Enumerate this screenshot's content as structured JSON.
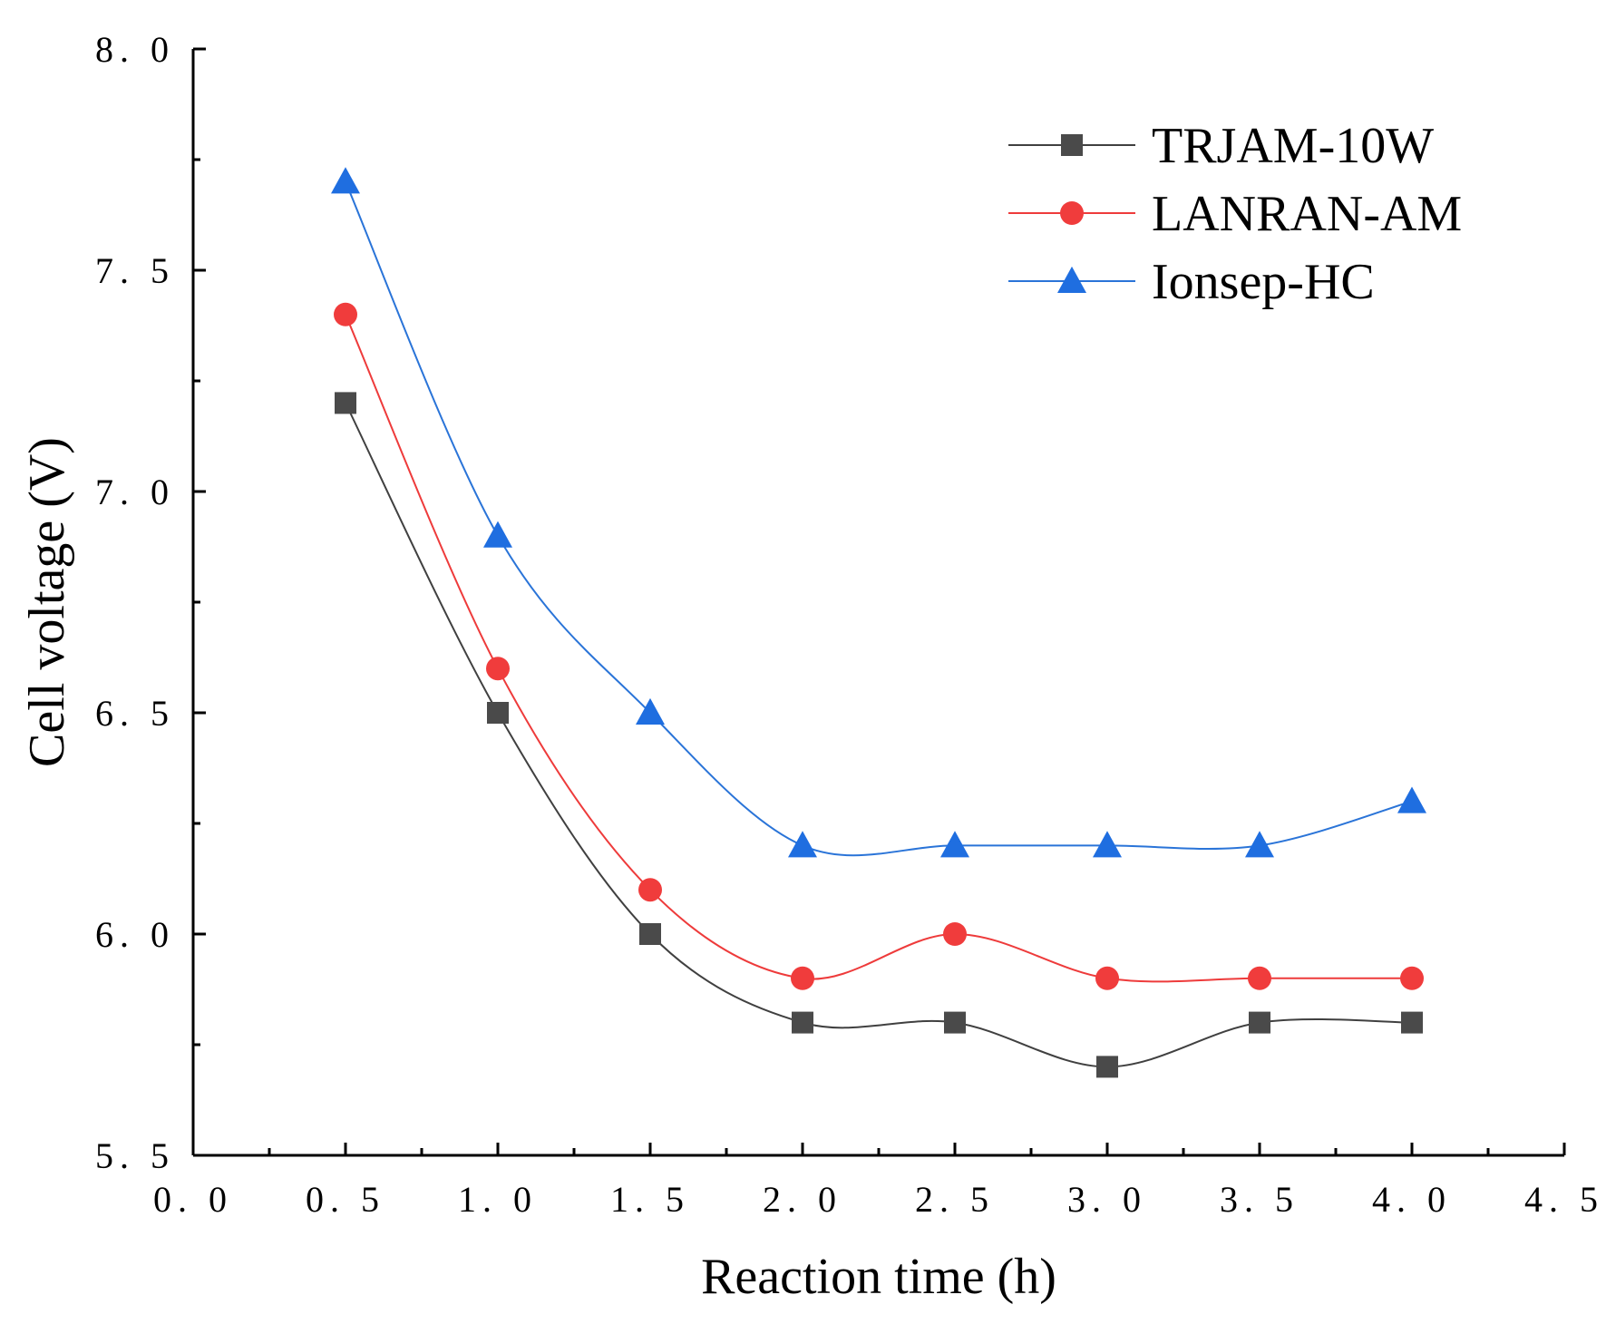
{
  "chart_data": {
    "type": "line",
    "title": "",
    "xlabel": "Reaction time (h)",
    "ylabel": "Cell voltage (V)",
    "xlim": [
      0.0,
      4.5
    ],
    "ylim": [
      5.5,
      8.0
    ],
    "xticks": [
      0.0,
      0.5,
      1.0,
      1.5,
      2.0,
      2.5,
      3.0,
      3.5,
      4.0,
      4.5
    ],
    "xtick_labels": [
      "0. 0",
      "0. 5",
      "1. 0",
      "1. 5",
      "2. 0",
      "2. 5",
      "3. 0",
      "3. 5",
      "4. 0",
      "4. 5"
    ],
    "yticks": [
      5.5,
      6.0,
      6.5,
      7.0,
      7.5,
      8.0
    ],
    "ytick_labels": [
      "5. 5",
      "6. 0",
      "6. 5",
      "7. 0",
      "7. 5",
      "8. 0"
    ],
    "grid": false,
    "legend_position": "top-right",
    "x": [
      0.5,
      1.0,
      1.5,
      2.0,
      2.5,
      3.0,
      3.5,
      4.0
    ],
    "series": [
      {
        "name": "TRJAM-10W",
        "marker": "square",
        "line_color": "#404040",
        "marker_color": "#4a4a4a",
        "values": [
          7.2,
          6.5,
          6.0,
          5.8,
          5.8,
          5.7,
          5.8,
          5.8
        ]
      },
      {
        "name": "LANRAN-AM",
        "marker": "circle",
        "line_color": "#ee3b3b",
        "marker_color": "#f03c3c",
        "values": [
          7.4,
          6.6,
          6.1,
          5.9,
          6.0,
          5.9,
          5.9,
          5.9
        ]
      },
      {
        "name": "Ionsep-HC",
        "marker": "triangle",
        "line_color": "#2a74d8",
        "marker_color": "#1f6ee0",
        "values": [
          7.7,
          6.9,
          6.5,
          6.2,
          6.2,
          6.2,
          6.2,
          6.3
        ]
      }
    ]
  }
}
